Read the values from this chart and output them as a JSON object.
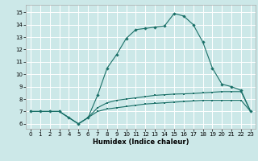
{
  "xlabel": "Humidex (Indice chaleur)",
  "bg_color": "#cce8e8",
  "grid_color": "#ffffff",
  "line_color": "#1a7068",
  "x_ticks": [
    0,
    1,
    2,
    3,
    4,
    5,
    6,
    7,
    8,
    9,
    10,
    11,
    12,
    13,
    14,
    15,
    16,
    17,
    18,
    19,
    20,
    21,
    22,
    23
  ],
  "y_ticks": [
    6,
    7,
    8,
    9,
    10,
    11,
    12,
    13,
    14,
    15
  ],
  "xlim": [
    -0.5,
    23.5
  ],
  "ylim": [
    5.6,
    15.6
  ],
  "line1_x": [
    0,
    1,
    2,
    3,
    4,
    5,
    6,
    7,
    8,
    9,
    10,
    11,
    12,
    13,
    14,
    15,
    16,
    17,
    18,
    19,
    20,
    21,
    22,
    23
  ],
  "line1_y": [
    7.0,
    7.0,
    7.0,
    7.0,
    6.5,
    6.0,
    6.5,
    7.0,
    7.2,
    7.3,
    7.4,
    7.5,
    7.6,
    7.65,
    7.7,
    7.75,
    7.8,
    7.85,
    7.9,
    7.9,
    7.9,
    7.9,
    7.9,
    7.0
  ],
  "line2_x": [
    0,
    1,
    2,
    3,
    4,
    5,
    6,
    7,
    8,
    9,
    10,
    11,
    12,
    13,
    14,
    15,
    16,
    17,
    18,
    19,
    20,
    21,
    22,
    23
  ],
  "line2_y": [
    7.0,
    7.0,
    7.0,
    7.0,
    6.5,
    6.0,
    6.5,
    7.3,
    7.7,
    7.9,
    8.0,
    8.1,
    8.2,
    8.3,
    8.35,
    8.4,
    8.42,
    8.45,
    8.5,
    8.55,
    8.6,
    8.6,
    8.6,
    7.0
  ],
  "line3_x": [
    0,
    1,
    2,
    3,
    4,
    5,
    6,
    7,
    8,
    9,
    10,
    11,
    12,
    13,
    14,
    15,
    16,
    17,
    18,
    19,
    20,
    21,
    22,
    23
  ],
  "line3_y": [
    7.0,
    7.0,
    7.0,
    7.0,
    6.5,
    6.0,
    6.5,
    8.3,
    10.5,
    11.6,
    12.9,
    13.6,
    13.7,
    13.8,
    13.9,
    14.9,
    14.7,
    14.0,
    12.6,
    10.5,
    9.2,
    9.0,
    8.7,
    7.0
  ]
}
